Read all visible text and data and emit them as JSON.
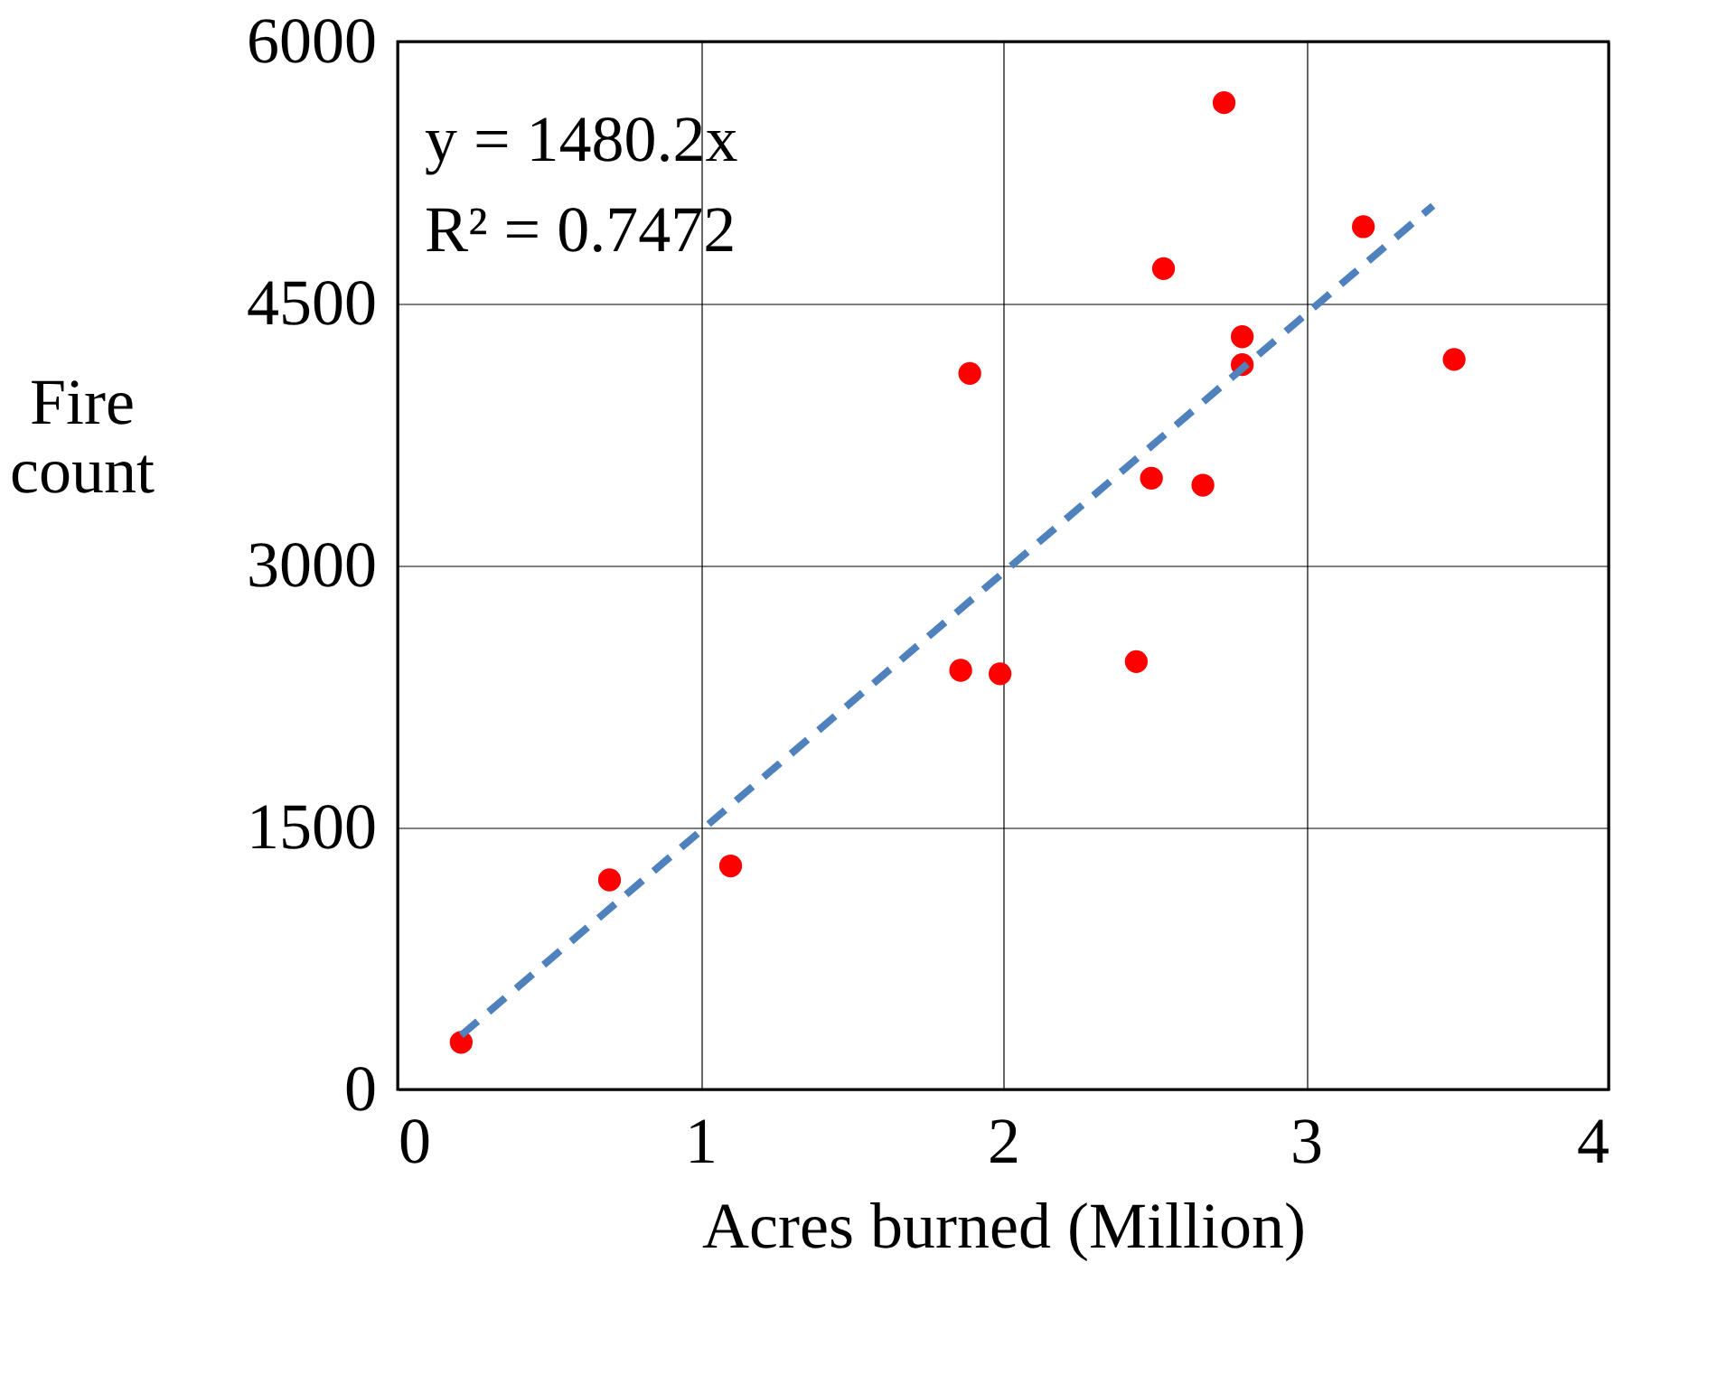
{
  "chart_data": {
    "type": "scatter",
    "xlabel": "Acres burned (Million)",
    "ylabel": "Fire count",
    "series": [
      {
        "color": "#ff0000",
        "marker": "circle",
        "x": [
          0.21,
          0.7,
          1.1,
          1.86,
          1.99,
          1.89,
          2.44,
          2.49,
          2.53,
          2.66,
          2.73,
          2.79,
          2.79,
          3.19,
          3.49
        ],
        "values": [
          270,
          1200,
          1280,
          2400,
          2380,
          4100,
          2450,
          3500,
          4700,
          3460,
          5650,
          4310,
          4150,
          4940,
          4180
        ]
      },
      {
        "type": "line",
        "color": "#4f81bd",
        "line_style": "dashed",
        "marker": "none",
        "x": [
          0.21,
          3.42
        ],
        "values": [
          310,
          5060
        ]
      }
    ],
    "annotations": [
      "y = 1480.2x",
      "R² = 0.7472"
    ],
    "xlim": [
      0,
      4
    ],
    "xticks": [
      0,
      1,
      2,
      3,
      4
    ],
    "ylim": [
      0,
      6000
    ],
    "yticks": [
      0,
      1500,
      3000,
      4500,
      6000
    ],
    "grid": true
  }
}
